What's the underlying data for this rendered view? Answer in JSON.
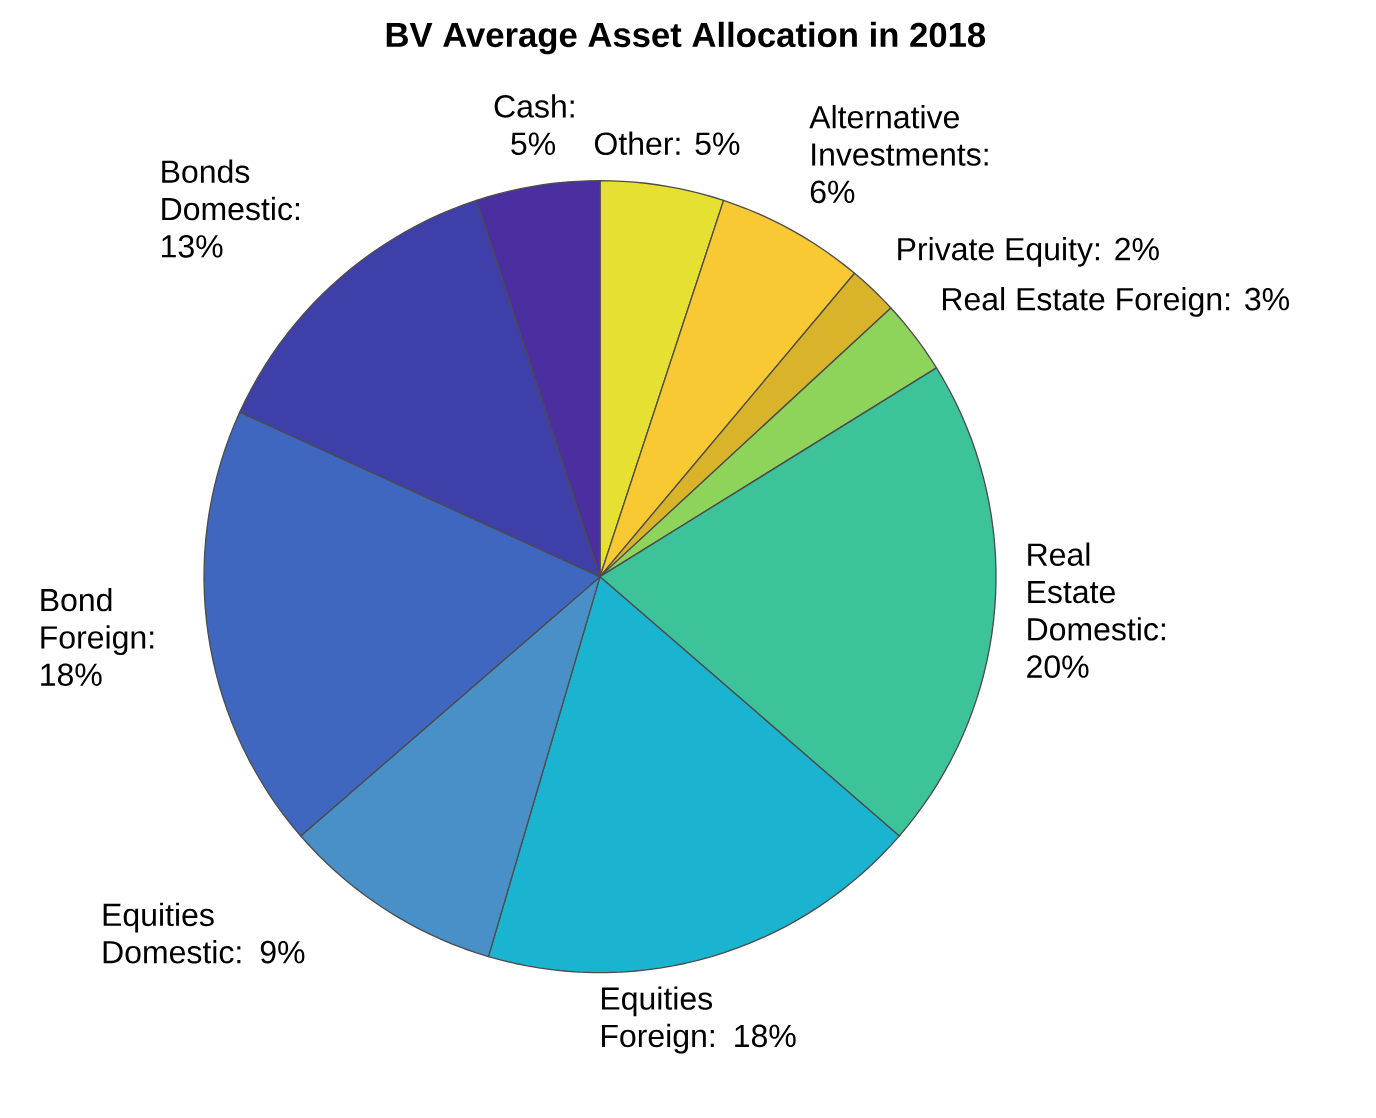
{
  "chart_data": {
    "type": "pie",
    "title": "BV Average Asset Allocation in 2018",
    "categories": [
      "Other: 5%",
      "Alternative Investments: 6%",
      "Private Equity: 2%",
      "Real Estate Foreign: 3%",
      "Real Estate Domestic: 20%",
      "Equities Foreign: 18%",
      "Equities Domestic: 9%",
      "Bond Foreign: 18%",
      "Bonds Domestic: 13%",
      "Cash: 5%"
    ],
    "values": [
      5,
      6,
      2,
      3,
      20,
      18,
      9,
      18,
      13,
      5
    ],
    "colors": [
      "#e6e033",
      "#f8c932",
      "#d9b32a",
      "#8ed35a",
      "#3cc39a",
      "#1ab4d0",
      "#4a90c8",
      "#4067c0",
      "#3e3fa8",
      "#4b2ea0"
    ]
  }
}
